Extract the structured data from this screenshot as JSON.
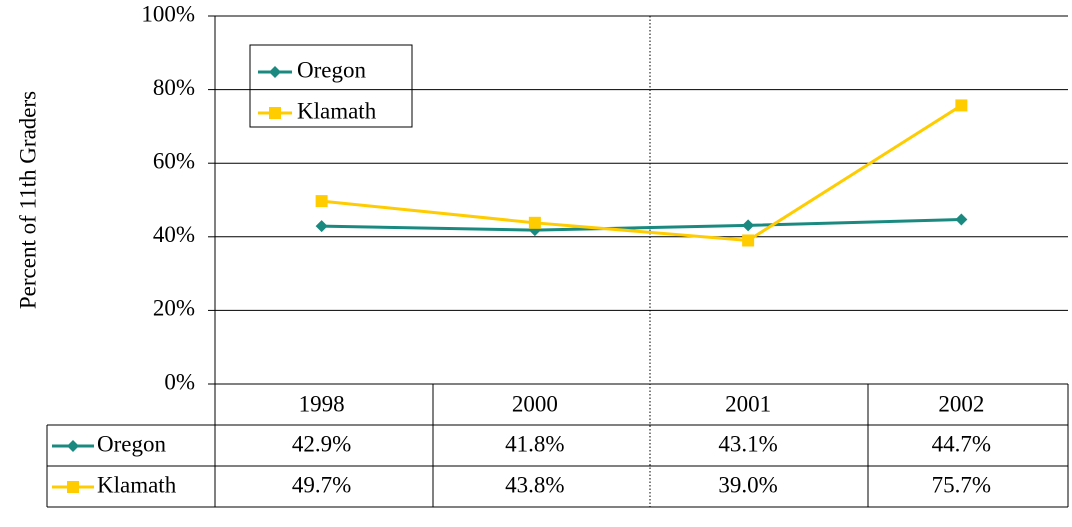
{
  "chart_data": {
    "type": "line",
    "ylabel": "Percent of 11th Graders",
    "categories": [
      "1998",
      "2000",
      "2001",
      "2002"
    ],
    "series": [
      {
        "name": "Oregon",
        "color": "#1a8a80",
        "marker": "diamond",
        "values": [
          42.9,
          41.8,
          43.1,
          44.7
        ],
        "value_labels": [
          "42.9%",
          "41.8%",
          "43.1%",
          "44.7%"
        ]
      },
      {
        "name": "Klamath",
        "color": "#ffcc00",
        "marker": "square",
        "values": [
          49.7,
          43.8,
          39.0,
          75.7
        ],
        "value_labels": [
          "49.7%",
          "43.8%",
          "39.0%",
          "75.7%"
        ]
      }
    ],
    "ylim": [
      0,
      100
    ],
    "yticks": [
      {
        "value": 0,
        "label": "0%"
      },
      {
        "value": 20,
        "label": "20%"
      },
      {
        "value": 40,
        "label": "40%"
      },
      {
        "value": 60,
        "label": "60%"
      },
      {
        "value": 80,
        "label": "80%"
      },
      {
        "value": 100,
        "label": "100%"
      }
    ],
    "grid": true
  }
}
